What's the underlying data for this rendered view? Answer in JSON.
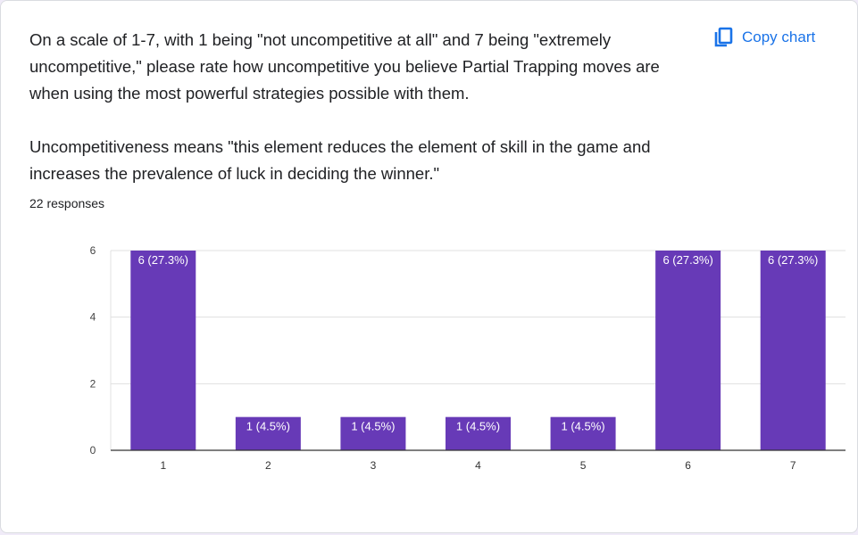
{
  "question": {
    "paragraph1": "On a scale of 1-7, with 1 being \"not uncompetitive at all\" and 7 being \"extremely uncompetitive,\" please rate how uncompetitive you believe Partial Trapping moves are when using the most powerful strategies possible with them.",
    "paragraph2": "Uncompetitiveness means \"this element reduces the element of skill in the game and increases the prevalence of luck in deciding the winner.\""
  },
  "responses_label": "22 responses",
  "copy_button": {
    "label": "Copy chart",
    "icon": "copy-icon"
  },
  "colors": {
    "bar": "#673ab7",
    "accent": "#1a73e8",
    "grid": "#e0e0e0",
    "axis": "#333333"
  },
  "chart_data": {
    "type": "bar",
    "categories": [
      "1",
      "2",
      "3",
      "4",
      "5",
      "6",
      "7"
    ],
    "values": [
      6,
      1,
      1,
      1,
      1,
      6,
      6
    ],
    "data_labels": [
      "6 (27.3%)",
      "1 (4.5%)",
      "1 (4.5%)",
      "1 (4.5%)",
      "1 (4.5%)",
      "6 (27.3%)",
      "6 (27.3%)"
    ],
    "y_ticks": [
      "0",
      "2",
      "4",
      "6"
    ],
    "ylim": [
      0,
      6
    ],
    "grid": true,
    "title": "",
    "xlabel": "",
    "ylabel": ""
  }
}
